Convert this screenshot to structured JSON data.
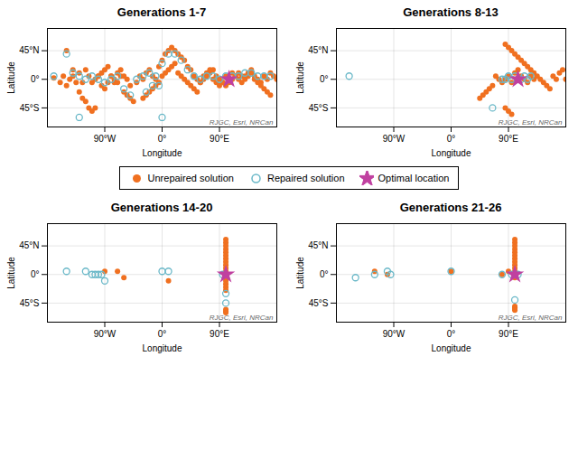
{
  "chart_data": [
    {
      "type": "scatter",
      "title": "Generations 1-7",
      "xlabel": "Longitude",
      "ylabel": "Latitude",
      "xlim": [
        -180,
        180
      ],
      "ylim": [
        -75,
        80
      ],
      "xticks": [
        {
          "value": -90,
          "label": "90°W"
        },
        {
          "value": 0,
          "label": "0°"
        },
        {
          "value": 90,
          "label": "90°E"
        }
      ],
      "yticks": [
        {
          "value": -45,
          "label": "45°S"
        },
        {
          "value": 0,
          "label": "0°"
        },
        {
          "value": 45,
          "label": "45°N"
        }
      ],
      "grid": true,
      "legend": "center",
      "annotations": [
        "RJGC, Esri, NRCan"
      ],
      "series": [
        {
          "name": "Unrepaired solution",
          "color": "#f07020",
          "marker": "circle",
          "x": [
            -170,
            -150,
            -140,
            -130,
            -125,
            -120,
            -115,
            -110,
            -105,
            -100,
            -95,
            -90,
            -85,
            -80,
            -75,
            -70,
            -65,
            -60,
            -55,
            -50,
            -45,
            -40,
            -35,
            -30,
            -25,
            -20,
            -15,
            -10,
            -5,
            0,
            5,
            10,
            15,
            20,
            25,
            30,
            35,
            40,
            45,
            50,
            55,
            60,
            65,
            70,
            75,
            80,
            85,
            90,
            95,
            100,
            105,
            110,
            115,
            120,
            125,
            130,
            135,
            140,
            145,
            150,
            155,
            160,
            165,
            170,
            175,
            180,
            -160,
            -155,
            -150,
            -145,
            -140,
            -135,
            -130,
            -125,
            -120,
            -115,
            -110,
            -105,
            -100,
            -95,
            -90,
            -85,
            -80,
            -75,
            -70,
            -65,
            -60,
            -55,
            -50,
            0,
            5,
            10,
            15,
            20,
            25,
            30,
            35,
            40,
            45,
            50,
            55,
            60,
            65,
            70,
            75,
            80,
            85,
            90,
            95,
            100,
            105,
            110,
            115,
            120,
            125,
            130,
            135,
            140,
            145,
            -5,
            -10,
            -15,
            -20,
            -25,
            -30,
            150,
            155,
            160,
            165,
            170
          ],
          "values": [
            2,
            45,
            5,
            10,
            -5,
            15,
            5,
            -5,
            0,
            5,
            -10,
            -15,
            -5,
            5,
            0,
            -5,
            5,
            -20,
            -25,
            -30,
            -35,
            -5,
            5,
            0,
            10,
            15,
            5,
            0,
            20,
            30,
            40,
            45,
            50,
            45,
            40,
            35,
            30,
            20,
            15,
            5,
            0,
            -5,
            5,
            10,
            15,
            0,
            -5,
            -10,
            -5,
            5,
            0,
            10,
            5,
            0,
            -5,
            5,
            10,
            15,
            5,
            0,
            -5,
            5,
            0,
            10,
            5,
            0,
            -5,
            5,
            -10,
            0,
            15,
            -5,
            -20,
            -30,
            -35,
            -45,
            -50,
            -45,
            5,
            10,
            15,
            20,
            5,
            -5,
            10,
            15,
            5,
            0,
            -10,
            5,
            10,
            15,
            20,
            25,
            10,
            5,
            0,
            -5,
            -10,
            -15,
            -20,
            -5,
            0,
            5,
            10,
            15,
            5,
            0,
            -5,
            -10,
            -5,
            0,
            5,
            10,
            5,
            0,
            5,
            10,
            0,
            -5,
            -10,
            -15,
            -20,
            -25,
            -30,
            -5,
            -10,
            -15,
            -20,
            -25
          ]
        },
        {
          "name": "Repaired solution",
          "color": "#6ab8c8",
          "marker": "circle-open",
          "x": [
            -170,
            -150,
            -140,
            -130,
            -120,
            -110,
            -100,
            -90,
            -80,
            -70,
            -60,
            -50,
            -40,
            -30,
            -20,
            -10,
            0,
            10,
            20,
            30,
            40,
            50,
            60,
            70,
            80,
            90,
            100,
            110,
            120,
            130,
            140,
            150,
            160,
            170,
            -5,
            -15,
            -25,
            0,
            -130
          ],
          "values": [
            5,
            40,
            10,
            5,
            0,
            5,
            0,
            -5,
            0,
            5,
            -15,
            -25,
            0,
            5,
            10,
            5,
            25,
            40,
            40,
            30,
            15,
            5,
            0,
            5,
            5,
            0,
            5,
            5,
            5,
            10,
            10,
            5,
            5,
            5,
            -10,
            -10,
            -20,
            -60,
            -60
          ]
        },
        {
          "name": "Optimal location",
          "color": "#c040a0",
          "marker": "star",
          "x": [
            105
          ],
          "values": [
            0
          ]
        }
      ]
    },
    {
      "type": "scatter",
      "title": "Generations 8-13",
      "xlabel": "Longitude",
      "ylabel": "Latitude",
      "xlim": [
        -180,
        180
      ],
      "ylim": [
        -75,
        80
      ],
      "xticks": [
        {
          "value": -90,
          "label": "90°W"
        },
        {
          "value": 0,
          "label": "0°"
        },
        {
          "value": 90,
          "label": "90°E"
        }
      ],
      "yticks": [
        {
          "value": -45,
          "label": "45°S"
        },
        {
          "value": 0,
          "label": "0°"
        },
        {
          "value": 45,
          "label": "45°N"
        }
      ],
      "grid": true,
      "legend": "center",
      "annotations": [
        "RJGC, Esri, NRCan"
      ],
      "series": [
        {
          "name": "Unrepaired solution",
          "color": "#f07020",
          "marker": "circle",
          "x": [
            85,
            90,
            95,
            100,
            105,
            110,
            115,
            120,
            125,
            130,
            135,
            140,
            145,
            150,
            155,
            160,
            165,
            170,
            175,
            180,
            85,
            90,
            95,
            100,
            105,
            110,
            115,
            120,
            125,
            130,
            80,
            75,
            70,
            65,
            60,
            55,
            50,
            45,
            85,
            90,
            95
          ],
          "values": [
            55,
            50,
            45,
            40,
            35,
            30,
            25,
            20,
            15,
            10,
            5,
            0,
            -5,
            -10,
            -15,
            5,
            0,
            10,
            15,
            0,
            0,
            5,
            -5,
            10,
            15,
            5,
            0,
            -5,
            5,
            0,
            -5,
            0,
            5,
            -10,
            -15,
            -20,
            -25,
            -30,
            -45,
            -50,
            -55
          ]
        },
        {
          "name": "Repaired solution",
          "color": "#6ab8c8",
          "marker": "circle-open",
          "x": [
            80,
            85,
            90,
            95,
            100,
            105,
            110,
            115,
            120,
            125,
            65,
            -160
          ],
          "values": [
            0,
            0,
            5,
            0,
            5,
            0,
            0,
            5,
            0,
            5,
            -45,
            5
          ]
        },
        {
          "name": "Optimal location",
          "color": "#c040a0",
          "marker": "star",
          "x": [
            105
          ],
          "values": [
            0
          ]
        }
      ]
    },
    {
      "type": "scatter",
      "title": "Generations 14-20",
      "xlabel": "Longitude",
      "ylabel": "Latitude",
      "xlim": [
        -180,
        180
      ],
      "ylim": [
        -75,
        80
      ],
      "xticks": [
        {
          "value": -90,
          "label": "90°W"
        },
        {
          "value": 0,
          "label": "0°"
        },
        {
          "value": 90,
          "label": "90°E"
        }
      ],
      "yticks": [
        {
          "value": -45,
          "label": "45°S"
        },
        {
          "value": 0,
          "label": "0°"
        },
        {
          "value": 45,
          "label": "45°N"
        }
      ],
      "grid": true,
      "legend": "center",
      "annotations": [
        "RJGC, Esri, NRCan"
      ],
      "series": [
        {
          "name": "Unrepaired solution",
          "color": "#f07020",
          "marker": "circle",
          "x": [
            100,
            100,
            100,
            100,
            100,
            100,
            100,
            100,
            100,
            100,
            100,
            100,
            100,
            100,
            100,
            100,
            100,
            100,
            100,
            100,
            -90,
            -70,
            -60,
            10
          ],
          "values": [
            55,
            50,
            45,
            40,
            35,
            30,
            25,
            20,
            15,
            10,
            5,
            0,
            -5,
            -10,
            -15,
            -20,
            -25,
            -55,
            -58,
            -60,
            5,
            5,
            -5,
            -10
          ]
        },
        {
          "name": "Repaired solution",
          "color": "#6ab8c8",
          "marker": "circle-open",
          "x": [
            -150,
            -120,
            -110,
            -105,
            -100,
            -95,
            -90,
            0,
            10,
            95,
            100,
            100
          ],
          "values": [
            5,
            5,
            0,
            0,
            0,
            0,
            -10,
            5,
            5,
            0,
            -30,
            -45
          ]
        },
        {
          "name": "Optimal location",
          "color": "#c040a0",
          "marker": "star",
          "x": [
            100
          ],
          "values": [
            0
          ]
        }
      ]
    },
    {
      "type": "scatter",
      "title": "Generations 21-26",
      "xlabel": "Longitude",
      "ylabel": "Latitude",
      "xlim": [
        -180,
        180
      ],
      "ylim": [
        -75,
        80
      ],
      "xticks": [
        {
          "value": -90,
          "label": "90°W"
        },
        {
          "value": 0,
          "label": "0°"
        },
        {
          "value": 90,
          "label": "90°E"
        }
      ],
      "yticks": [
        {
          "value": -45,
          "label": "45°S"
        },
        {
          "value": 0,
          "label": "0°"
        },
        {
          "value": 45,
          "label": "45°N"
        }
      ],
      "grid": true,
      "legend": "center",
      "annotations": [
        "RJGC, Esri, NRCan"
      ],
      "series": [
        {
          "name": "Unrepaired solution",
          "color": "#f07020",
          "marker": "circle",
          "x": [
            100,
            100,
            100,
            100,
            100,
            100,
            100,
            100,
            100,
            100,
            100,
            100,
            100,
            100,
            100,
            100,
            100,
            -120,
            -100,
            0,
            80,
            90
          ],
          "values": [
            55,
            50,
            45,
            40,
            35,
            30,
            25,
            20,
            15,
            10,
            5,
            0,
            -5,
            -50,
            -52,
            -54,
            -56,
            5,
            0,
            5,
            0,
            5
          ]
        },
        {
          "name": "Repaired solution",
          "color": "#6ab8c8",
          "marker": "circle-open",
          "x": [
            -150,
            -120,
            -100,
            -95,
            0,
            80,
            95,
            105,
            100
          ],
          "values": [
            -5,
            0,
            5,
            0,
            5,
            0,
            0,
            0,
            -40
          ]
        },
        {
          "name": "Optimal location",
          "color": "#c040a0",
          "marker": "star",
          "x": [
            100
          ],
          "values": [
            0
          ]
        }
      ]
    }
  ]
}
